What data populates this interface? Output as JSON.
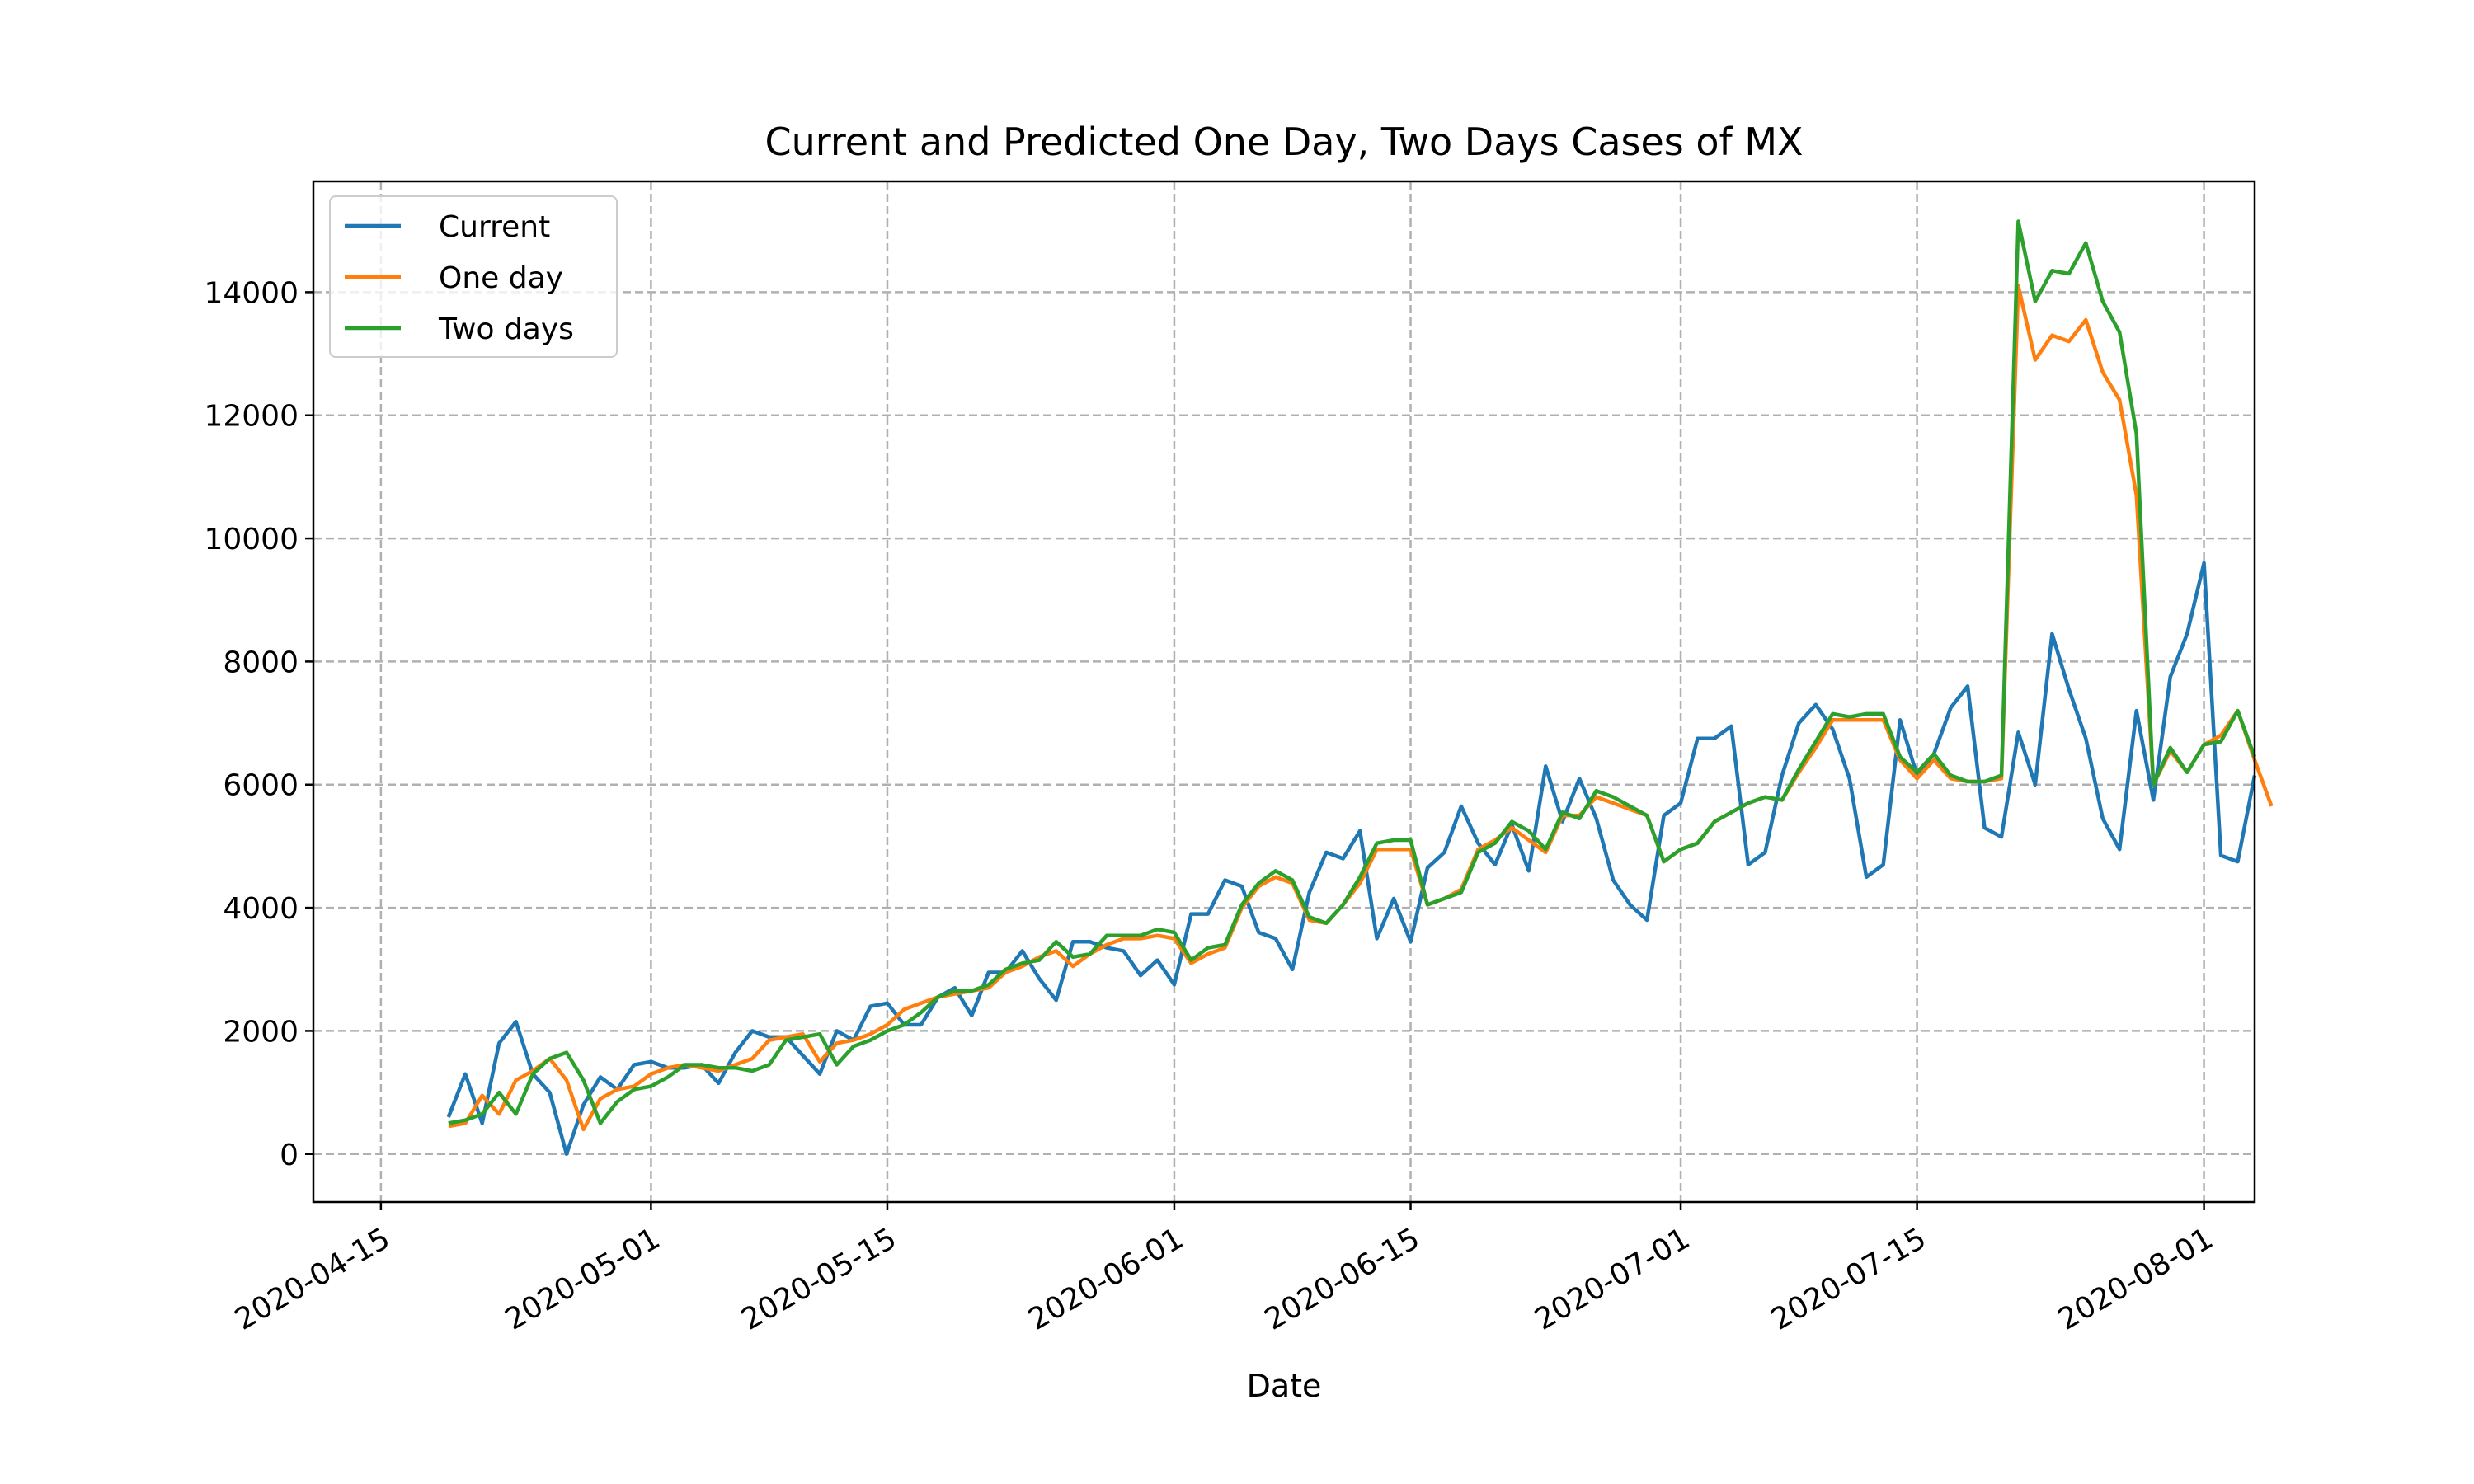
{
  "chart_data": {
    "type": "line",
    "title": "Current and Predicted One Day, Two Days Cases of MX",
    "xlabel": "Date",
    "ylabel": "",
    "x_start": "2020-04-19",
    "x_step_days": 1,
    "xlim": [
      "2020-04-11",
      "2020-08-04"
    ],
    "ylim": [
      -780,
      15800
    ],
    "xticks": [
      "2020-04-15",
      "2020-05-01",
      "2020-05-15",
      "2020-06-01",
      "2020-06-15",
      "2020-07-01",
      "2020-07-15",
      "2020-08-01"
    ],
    "yticks": [
      0,
      2000,
      4000,
      6000,
      8000,
      10000,
      12000,
      14000
    ],
    "grid": true,
    "legend_position": "top-left",
    "series": [
      {
        "name": "Current",
        "color": "#1f77b4",
        "values": [
          600,
          1300,
          500,
          1800,
          2150,
          1300,
          1000,
          0,
          800,
          1250,
          1050,
          1450,
          1500,
          1400,
          1400,
          1450,
          1150,
          1650,
          2000,
          1900,
          1900,
          1600,
          1300,
          2000,
          1850,
          2400,
          2450,
          2100,
          2100,
          2550,
          2700,
          2250,
          2950,
          2950,
          3300,
          2850,
          2500,
          3450,
          3450,
          3350,
          3300,
          2900,
          3150,
          2750,
          3900,
          3900,
          4450,
          4350,
          3600,
          3500,
          3000,
          4250,
          4900,
          4800,
          5250,
          3500,
          4150,
          3450,
          4650,
          4900,
          5650,
          5050,
          4700,
          5350,
          4600,
          6300,
          5400,
          6100,
          5450,
          4450,
          4050,
          3800,
          5500,
          5700,
          6750,
          6750,
          6950,
          4700,
          4900,
          6150,
          7000,
          7300,
          6900,
          6100,
          4500,
          4700,
          7050,
          6150,
          6500,
          7250,
          7600,
          5300,
          5150,
          6850,
          6000,
          8450,
          7550,
          6750,
          5450,
          4950,
          7200,
          5750,
          7750,
          8450,
          9600,
          4850,
          4750,
          6150
        ]
      },
      {
        "name": "One day",
        "color": "#ff7f0e",
        "values": [
          450,
          500,
          950,
          650,
          1200,
          1350,
          1550,
          1200,
          400,
          900,
          1050,
          1100,
          1300,
          1400,
          1450,
          1400,
          1350,
          1450,
          1550,
          1850,
          1900,
          1950,
          1500,
          1800,
          1850,
          1950,
          2100,
          2350,
          2450,
          2550,
          2600,
          2650,
          2700,
          2950,
          3050,
          3200,
          3300,
          3050,
          3250,
          3400,
          3500,
          3500,
          3550,
          3500,
          3100,
          3250,
          3350,
          4000,
          4350,
          4500,
          4400,
          3800,
          3750,
          4050,
          4400,
          4950,
          4950,
          4950,
          4050,
          4150,
          4300,
          4950,
          5100,
          5300,
          5100,
          4900,
          5500,
          5500,
          5800,
          5700,
          5600,
          5500,
          4750,
          4950,
          5050,
          5400,
          5550,
          5700,
          5800,
          5750,
          6200,
          6600,
          7050,
          7050,
          7050,
          7050,
          6400,
          6100,
          6400,
          6100,
          6050,
          6050,
          6100,
          14100,
          12900,
          13300,
          13200,
          13550,
          12700,
          12250,
          10700,
          6000,
          6550,
          6200,
          6650,
          6800,
          7200,
          6400,
          5650
        ]
      },
      {
        "name": "Two days",
        "color": "#2ca02c",
        "values": [
          500,
          550,
          650,
          1000,
          650,
          1300,
          1550,
          1650,
          1200,
          500,
          850,
          1050,
          1100,
          1250,
          1450,
          1450,
          1400,
          1400,
          1350,
          1450,
          1850,
          1900,
          1950,
          1450,
          1750,
          1850,
          2000,
          2100,
          2300,
          2550,
          2650,
          2650,
          2750,
          3000,
          3100,
          3150,
          3450,
          3200,
          3250,
          3550,
          3550,
          3550,
          3650,
          3600,
          3150,
          3350,
          3400,
          4050,
          4400,
          4600,
          4450,
          3850,
          3750,
          4050,
          4500,
          5050,
          5100,
          5100,
          4050,
          4150,
          4250,
          4900,
          5050,
          5400,
          5250,
          4950,
          5550,
          5450,
          5900,
          5800,
          5650,
          5500,
          4750,
          4950,
          5050,
          5400,
          5550,
          5700,
          5800,
          5750,
          6250,
          6700,
          7150,
          7100,
          7150,
          7150,
          6450,
          6200,
          6500,
          6150,
          6050,
          6050,
          6150,
          15150,
          13850,
          14350,
          14300,
          14800,
          13850,
          13350,
          11700,
          6000,
          6600,
          6200,
          6650,
          6700,
          7200,
          6450
        ]
      }
    ]
  }
}
